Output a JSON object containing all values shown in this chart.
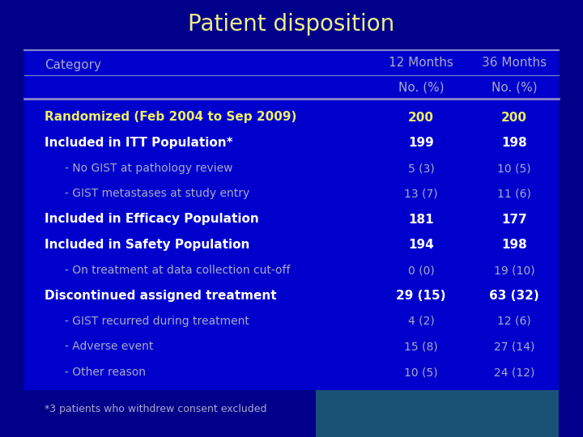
{
  "title": "Patient disposition",
  "title_color": "#EEEE88",
  "title_fontsize": 20,
  "bg_color": "#00008B",
  "table_bg": "#0000CC",
  "header_line_color": "#8888CC",
  "footer_teal": "#1A5276",
  "rows": [
    {
      "label": "Randomized (Feb 2004 to Sep 2009)",
      "v1": "200",
      "v2": "200",
      "bold": true,
      "yellow": true,
      "indent": false
    },
    {
      "label": "Included in ITT Population*",
      "v1": "199",
      "v2": "198",
      "bold": true,
      "yellow": false,
      "indent": false
    },
    {
      "label": "- No GIST at pathology review",
      "v1": "5 (3)",
      "v2": "10 (5)",
      "bold": false,
      "yellow": false,
      "indent": true
    },
    {
      "label": "- GIST metastases at study entry",
      "v1": "13 (7)",
      "v2": "11 (6)",
      "bold": false,
      "yellow": false,
      "indent": true
    },
    {
      "label": "Included in Efficacy Population",
      "v1": "181",
      "v2": "177",
      "bold": true,
      "yellow": false,
      "indent": false
    },
    {
      "label": "Included in Safety Population",
      "v1": "194",
      "v2": "198",
      "bold": true,
      "yellow": false,
      "indent": false
    },
    {
      "label": "- On treatment at data collection cut-off",
      "v1": "0 (0)",
      "v2": "19 (10)",
      "bold": false,
      "yellow": false,
      "indent": true
    },
    {
      "label": "Discontinued assigned treatment",
      "v1": "29 (15)",
      "v2": "63 (32)",
      "bold": true,
      "yellow": false,
      "indent": false
    },
    {
      "label": "- GIST recurred during treatment",
      "v1": "4 (2)",
      "v2": "12 (6)",
      "bold": false,
      "yellow": false,
      "indent": true
    },
    {
      "label": "- Adverse event",
      "v1": "15 (8)",
      "v2": "27 (14)",
      "bold": false,
      "yellow": false,
      "indent": true
    },
    {
      "label": "- Other reason",
      "v1": "10 (5)",
      "v2": "24 (12)",
      "bold": false,
      "yellow": false,
      "indent": true
    }
  ],
  "footnote": "*3 patients who withdrew consent excluded",
  "text_white": "#FFFFFF",
  "text_light": "#AAAACC",
  "text_yellow": "#EEEE66"
}
